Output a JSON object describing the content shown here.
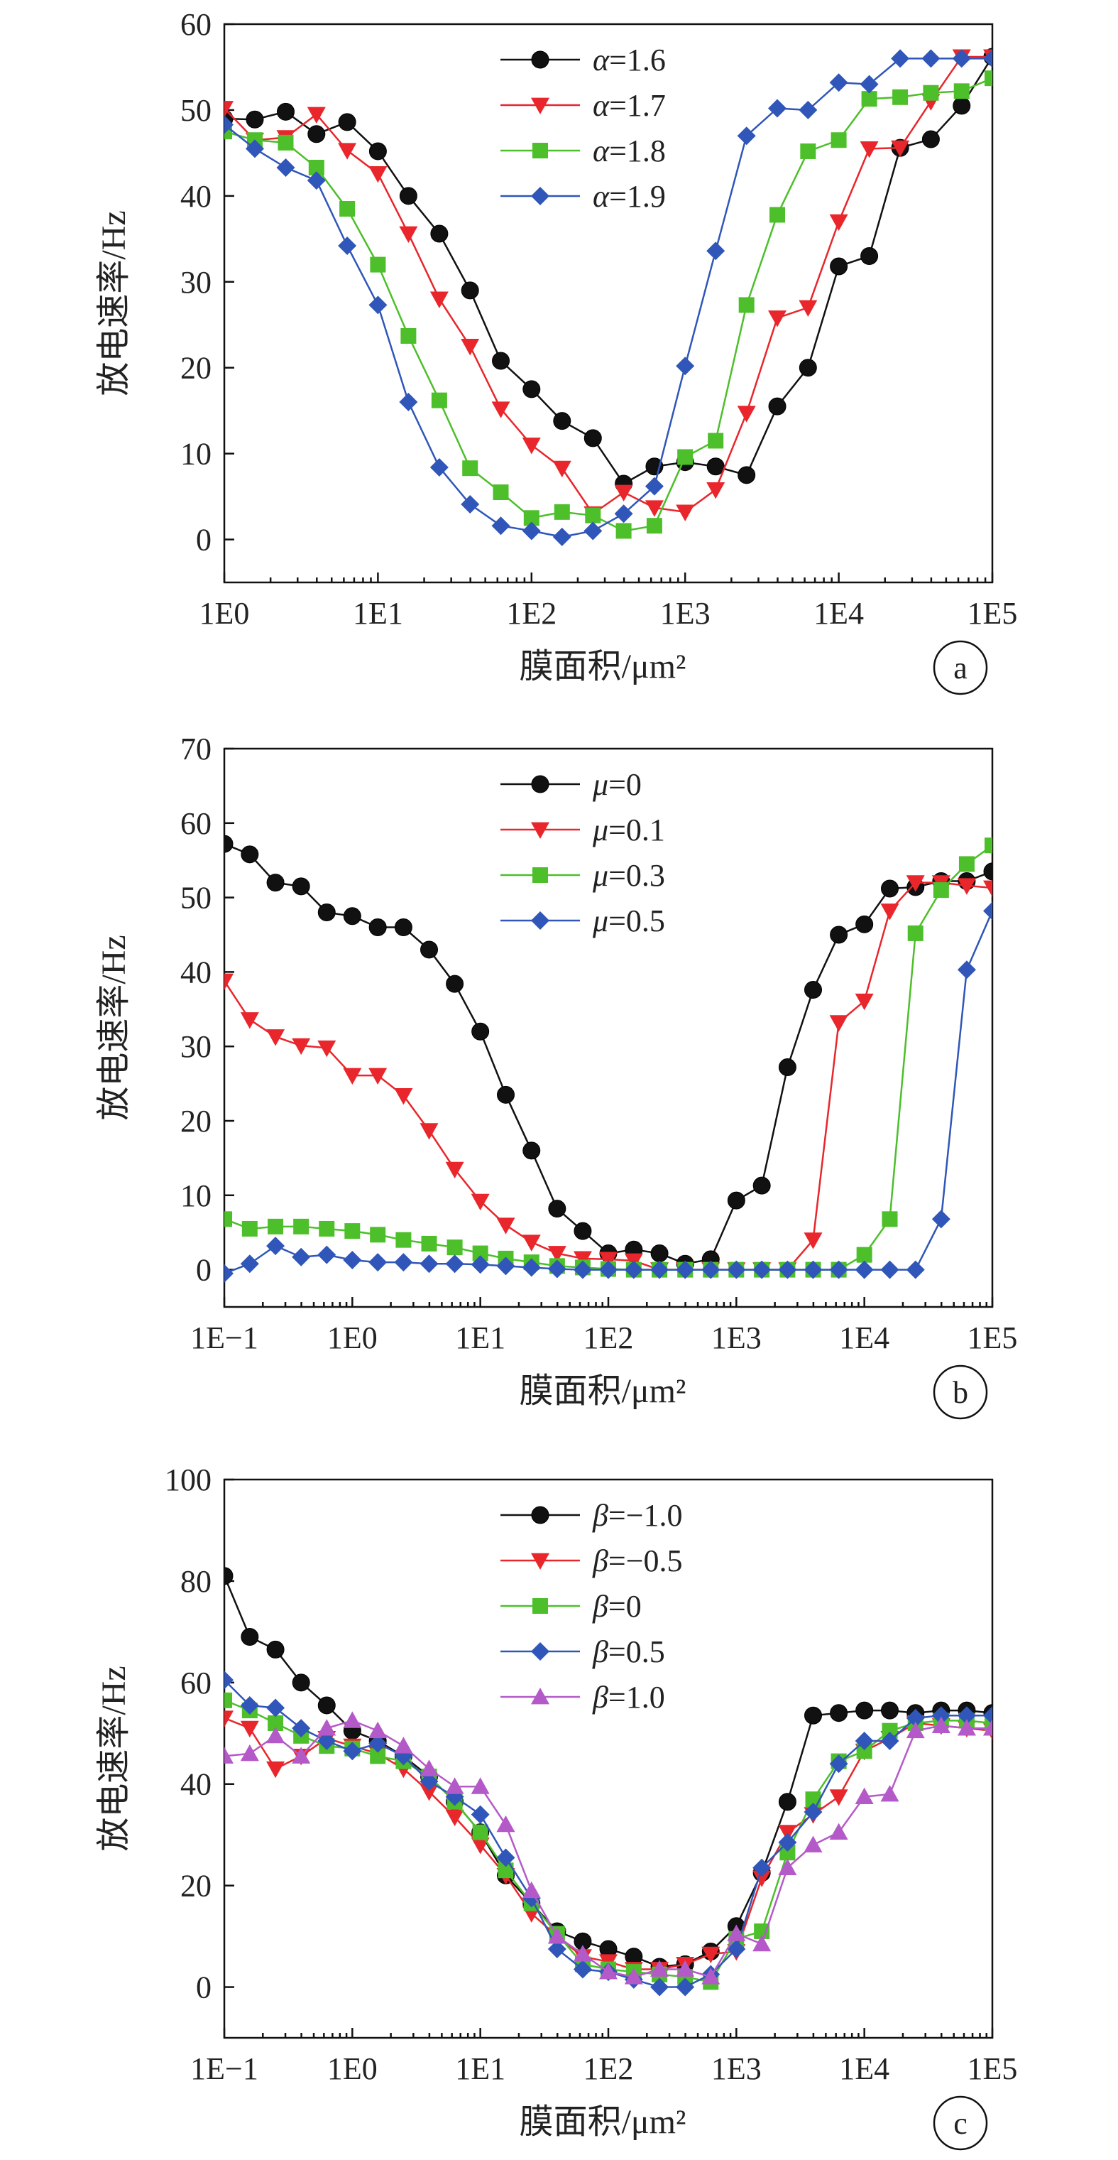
{
  "colors": {
    "black": "#111111",
    "red": "#e8262b",
    "green": "#4cbf2a",
    "blue": "#2f56b8",
    "purple": "#b45ac8"
  },
  "chart_data": [
    {
      "type": "line",
      "panel_label": "a",
      "xscale": "log",
      "xlim": [
        1,
        100000
      ],
      "ylim": [
        -5,
        60
      ],
      "xticks": [
        1,
        10,
        100,
        1000,
        10000,
        100000
      ],
      "xtick_labels": [
        "1E0",
        "1E1",
        "1E2",
        "1E3",
        "1E4",
        "1E5"
      ],
      "yticks": [
        0,
        10,
        20,
        30,
        40,
        50,
        60
      ],
      "ytick_labels": [
        "0",
        "10",
        "20",
        "30",
        "40",
        "50",
        "60"
      ],
      "xlabel": "膜面积/μm²",
      "ylabel": "放电速率/Hz",
      "legend_position": "top-center",
      "series": [
        {
          "name": "α=1.6",
          "symbol": "α",
          "value_text": "=1.6",
          "color": "#111111",
          "marker": "circle",
          "x": [
            1,
            1.58,
            2.51,
            3.98,
            6.31,
            10,
            15.8,
            25.1,
            39.8,
            63.1,
            100,
            158,
            251,
            398,
            631,
            1000,
            1580,
            2510,
            3980,
            6310,
            10000,
            15800,
            25100,
            39800,
            63100,
            100000
          ],
          "y": [
            49,
            48.9,
            49.8,
            47.2,
            48.6,
            45.2,
            40,
            35.6,
            29,
            20.8,
            17.5,
            13.8,
            11.8,
            6.5,
            8.5,
            9,
            8.5,
            7.5,
            15.5,
            20,
            31.8,
            33,
            45.6,
            46.6,
            50.5,
            56.2
          ]
        },
        {
          "name": "α=1.7",
          "symbol": "α",
          "value_text": "=1.7",
          "color": "#e8262b",
          "marker": "triangle-down",
          "x": [
            1,
            1.58,
            2.51,
            3.98,
            6.31,
            10,
            15.8,
            25.1,
            39.8,
            63.1,
            100,
            158,
            251,
            398,
            631,
            1000,
            1580,
            2510,
            3980,
            6310,
            10000,
            15800,
            25100,
            39800,
            63100,
            100000
          ],
          "y": [
            50.2,
            46.5,
            46.8,
            49.5,
            45.3,
            42.6,
            35.6,
            28,
            22.5,
            15.2,
            11,
            8.3,
            3,
            5.5,
            3.7,
            3.2,
            5.8,
            14.7,
            25.8,
            27,
            37,
            45.5,
            45.6,
            51,
            56.2,
            56.2
          ]
        },
        {
          "name": "α=1.8",
          "symbol": "α",
          "value_text": "=1.8",
          "color": "#4cbf2a",
          "marker": "square",
          "x": [
            1,
            1.58,
            2.51,
            3.98,
            6.31,
            10,
            15.8,
            25.1,
            39.8,
            63.1,
            100,
            158,
            251,
            398,
            631,
            1000,
            1580,
            2510,
            3980,
            6310,
            10000,
            15800,
            25100,
            39800,
            63100,
            100000
          ],
          "y": [
            47.5,
            46.5,
            46.2,
            43.3,
            38.5,
            32,
            23.7,
            16.2,
            8.3,
            5.5,
            2.5,
            3.2,
            2.8,
            1,
            1.6,
            9.6,
            11.5,
            27.3,
            37.8,
            45.2,
            46.5,
            51.3,
            51.5,
            52,
            52.2,
            53.7
          ]
        },
        {
          "name": "α=1.9",
          "symbol": "α",
          "value_text": "=1.9",
          "color": "#2f56b8",
          "marker": "diamond",
          "x": [
            1,
            1.58,
            2.51,
            3.98,
            6.31,
            10,
            15.8,
            25.1,
            39.8,
            63.1,
            100,
            158,
            251,
            398,
            631,
            1000,
            1580,
            2510,
            3980,
            6310,
            10000,
            15800,
            25100,
            39800,
            63100,
            100000
          ],
          "y": [
            48.3,
            45.5,
            43.3,
            41.8,
            34.2,
            27.3,
            16,
            8.4,
            4.1,
            1.6,
            1,
            0.3,
            1,
            3,
            6.2,
            20.2,
            33.6,
            47,
            50.2,
            50,
            53.2,
            53,
            56,
            56,
            56,
            56
          ]
        }
      ]
    },
    {
      "type": "line",
      "panel_label": "b",
      "xscale": "log",
      "xlim": [
        0.1,
        100000
      ],
      "ylim": [
        -5,
        70
      ],
      "xticks": [
        0.1,
        1,
        10,
        100,
        1000,
        10000,
        100000
      ],
      "xtick_labels": [
        "1E−1",
        "1E0",
        "1E1",
        "1E2",
        "1E3",
        "1E4",
        "1E5"
      ],
      "yticks": [
        0,
        10,
        20,
        30,
        40,
        50,
        60,
        70
      ],
      "ytick_labels": [
        "0",
        "10",
        "20",
        "30",
        "40",
        "50",
        "60",
        "70"
      ],
      "xlabel": "膜面积/μm²",
      "ylabel": "放电速率/Hz",
      "legend_position": "top-center",
      "series": [
        {
          "name": "μ=0",
          "symbol": "μ",
          "value_text": "=0",
          "color": "#111111",
          "marker": "circle",
          "x": [
            0.1,
            0.158,
            0.251,
            0.398,
            0.631,
            1,
            1.58,
            2.51,
            3.98,
            6.31,
            10,
            15.8,
            25.1,
            39.8,
            63.1,
            100,
            158,
            251,
            398,
            631,
            1000,
            1580,
            2510,
            3980,
            6310,
            10000,
            15800,
            25100,
            39800,
            63100,
            100000
          ],
          "y": [
            57.2,
            55.8,
            52,
            51.5,
            48,
            47.5,
            46,
            46,
            43,
            38.4,
            32,
            23.5,
            16,
            8.2,
            5.2,
            2.2,
            2.7,
            2.2,
            0.8,
            1.4,
            9.3,
            11.3,
            27.2,
            37.6,
            45,
            46.4,
            51.2,
            51.4,
            52.2,
            52.2,
            53.5
          ]
        },
        {
          "name": "μ=0.1",
          "symbol": "μ",
          "value_text": "=0.1",
          "color": "#e8262b",
          "marker": "triangle-down",
          "x": [
            0.1,
            0.158,
            0.251,
            0.398,
            0.631,
            1,
            1.58,
            2.51,
            3.98,
            6.31,
            10,
            15.8,
            25.1,
            39.8,
            63.1,
            100,
            158,
            251,
            398,
            631,
            1000,
            1580,
            2510,
            3980,
            6310,
            10000,
            15800,
            25100,
            39800,
            63100,
            100000
          ],
          "y": [
            38.8,
            33.6,
            31.3,
            30.1,
            29.8,
            26.1,
            26.1,
            23.4,
            18.7,
            13.5,
            9.2,
            6,
            3.7,
            2.2,
            1.5,
            1.4,
            1.2,
            0,
            0,
            0,
            0,
            0,
            0,
            4,
            33.2,
            36.1,
            48.2,
            52,
            52,
            51.6,
            51.3
          ]
        },
        {
          "name": "μ=0.3",
          "symbol": "μ",
          "value_text": "=0.3",
          "color": "#4cbf2a",
          "marker": "square",
          "x": [
            0.1,
            0.158,
            0.251,
            0.398,
            0.631,
            1,
            1.58,
            2.51,
            3.98,
            6.31,
            10,
            15.8,
            25.1,
            39.8,
            63.1,
            100,
            158,
            251,
            398,
            631,
            1000,
            1580,
            2510,
            3980,
            6310,
            10000,
            15800,
            25100,
            39800,
            63100,
            100000
          ],
          "y": [
            6.8,
            5.5,
            5.8,
            5.8,
            5.5,
            5.2,
            4.7,
            4,
            3.5,
            3,
            2.2,
            1.5,
            1,
            0.5,
            0.3,
            0.1,
            0,
            0,
            0,
            0,
            0,
            0,
            0,
            0,
            0,
            2,
            6.8,
            45.2,
            51,
            54.5,
            57
          ]
        },
        {
          "name": "μ=0.5",
          "symbol": "μ",
          "value_text": "=0.5",
          "color": "#2f56b8",
          "marker": "diamond",
          "x": [
            0.1,
            0.158,
            0.251,
            0.398,
            0.631,
            1,
            1.58,
            2.51,
            3.98,
            6.31,
            10,
            15.8,
            25.1,
            39.8,
            63.1,
            100,
            158,
            251,
            398,
            631,
            1000,
            1580,
            2510,
            3980,
            6310,
            10000,
            15800,
            25100,
            39800,
            63100,
            100000
          ],
          "y": [
            -0.5,
            0.8,
            3.2,
            1.7,
            2,
            1.3,
            1,
            1,
            0.8,
            0.8,
            0.7,
            0.5,
            0.3,
            0.1,
            0,
            0,
            0,
            0,
            0,
            0,
            0,
            0,
            0,
            0,
            0,
            0,
            0,
            0,
            6.8,
            40.3,
            48.2
          ]
        }
      ]
    },
    {
      "type": "line",
      "panel_label": "c",
      "xscale": "log",
      "xlim": [
        0.1,
        100000
      ],
      "ylim": [
        -10,
        100
      ],
      "xticks": [
        0.1,
        1,
        10,
        100,
        1000,
        10000,
        100000
      ],
      "xtick_labels": [
        "1E−1",
        "1E0",
        "1E1",
        "1E2",
        "1E3",
        "1E4",
        "1E5"
      ],
      "yticks": [
        0,
        20,
        40,
        60,
        80,
        100
      ],
      "ytick_labels": [
        "0",
        "20",
        "40",
        "60",
        "80",
        "100"
      ],
      "xlabel": "膜面积/μm²",
      "ylabel": "放电速率/Hz",
      "legend_position": "top-center",
      "series": [
        {
          "name": "β=−1.0",
          "symbol": "β",
          "value_text": "=−1.0",
          "color": "#111111",
          "marker": "circle",
          "x": [
            0.1,
            0.158,
            0.251,
            0.398,
            0.631,
            1,
            1.58,
            2.51,
            3.98,
            6.31,
            10,
            15.8,
            25.1,
            39.8,
            63.1,
            100,
            158,
            251,
            398,
            631,
            1000,
            1580,
            2510,
            3980,
            6310,
            10000,
            15800,
            25100,
            39800,
            63100,
            100000
          ],
          "y": [
            81,
            69,
            66.5,
            60,
            55.5,
            50.5,
            48.5,
            45.5,
            41.5,
            36.5,
            30.5,
            22,
            16.5,
            11,
            9,
            7.5,
            6,
            4,
            4.5,
            7,
            12,
            22.5,
            36.5,
            53.5,
            54,
            54.5,
            54.5,
            54,
            54.5,
            54.5,
            54
          ]
        },
        {
          "name": "β=−0.5",
          "symbol": "β",
          "value_text": "=−0.5",
          "color": "#e8262b",
          "marker": "triangle-down",
          "x": [
            0.1,
            0.158,
            0.251,
            0.398,
            0.631,
            1,
            1.58,
            2.51,
            3.98,
            6.31,
            10,
            15.8,
            25.1,
            39.8,
            63.1,
            100,
            158,
            251,
            398,
            631,
            1000,
            1580,
            2510,
            3980,
            6310,
            10000,
            15800,
            25100,
            39800,
            63100,
            100000
          ],
          "y": [
            53,
            51,
            43,
            45.5,
            49,
            47.5,
            46,
            43,
            38.5,
            33.5,
            28,
            22,
            14.5,
            10,
            6,
            5,
            3.5,
            3.5,
            4.5,
            6.5,
            7,
            21.5,
            30.5,
            34,
            37.5,
            46.5,
            49,
            52,
            51.5,
            51,
            50.5
          ]
        },
        {
          "name": "β=0",
          "symbol": "β",
          "value_text": "=0",
          "color": "#4cbf2a",
          "marker": "square",
          "x": [
            0.1,
            0.158,
            0.251,
            0.398,
            0.631,
            1,
            1.58,
            2.51,
            3.98,
            6.31,
            10,
            15.8,
            25.1,
            39.8,
            63.1,
            100,
            158,
            251,
            398,
            631,
            1000,
            1580,
            2510,
            3980,
            6310,
            10000,
            15800,
            25100,
            39800,
            63100,
            100000
          ],
          "y": [
            56.5,
            54.5,
            52,
            49.5,
            47.5,
            47,
            45.5,
            44.5,
            41.5,
            36.5,
            30.5,
            23,
            16.5,
            10.5,
            4.5,
            3.5,
            3,
            2.5,
            2,
            1,
            9.5,
            11,
            26.5,
            37,
            44.5,
            46.5,
            50.5,
            52,
            52.5,
            52.5,
            52
          ]
        },
        {
          "name": "β=0.5",
          "symbol": "β",
          "value_text": "=0.5",
          "color": "#2f56b8",
          "marker": "diamond",
          "x": [
            0.1,
            0.158,
            0.251,
            0.398,
            0.631,
            1,
            1.58,
            2.51,
            3.98,
            6.31,
            10,
            15.8,
            25.1,
            39.8,
            63.1,
            100,
            158,
            251,
            398,
            631,
            1000,
            1580,
            2510,
            3980,
            6310,
            10000,
            15800,
            25100,
            39800,
            63100,
            100000
          ],
          "y": [
            60.5,
            55.5,
            55,
            51,
            48.5,
            46.5,
            48,
            45.5,
            40.5,
            37.5,
            34,
            25.5,
            17.5,
            7.5,
            3.5,
            3,
            1.5,
            0,
            0,
            2.5,
            7.5,
            23.5,
            28.5,
            34.5,
            44,
            48.5,
            48.5,
            53,
            53.5,
            53.5,
            53.5
          ]
        },
        {
          "name": "β=1.0",
          "symbol": "β",
          "value_text": "=1.0",
          "color": "#b45ac8",
          "marker": "triangle-up",
          "x": [
            0.1,
            0.158,
            0.251,
            0.398,
            0.631,
            1,
            1.58,
            2.51,
            3.98,
            6.31,
            10,
            15.8,
            25.1,
            39.8,
            63.1,
            100,
            158,
            251,
            398,
            631,
            1000,
            1580,
            2510,
            3980,
            6310,
            10000,
            15800,
            25100,
            39800,
            63100,
            100000
          ],
          "y": [
            45.5,
            46,
            49.5,
            45.5,
            51,
            52.5,
            50.5,
            47.5,
            43,
            39.5,
            39.5,
            32,
            19,
            10,
            6.5,
            3,
            2,
            3.5,
            3.5,
            2,
            10.5,
            8.5,
            23.5,
            28,
            30.5,
            37.5,
            38,
            50.5,
            51.5,
            51,
            51
          ]
        }
      ]
    }
  ]
}
